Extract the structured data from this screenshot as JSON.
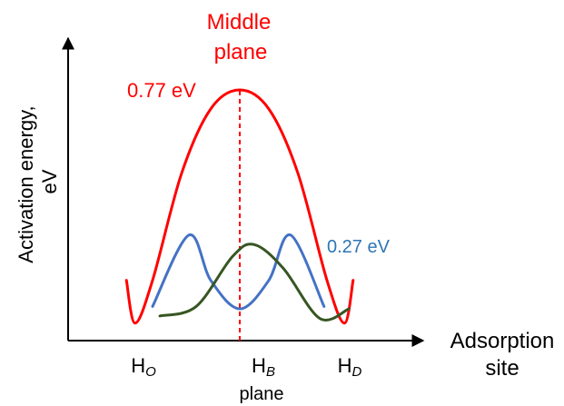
{
  "chart_data": {
    "type": "line",
    "ylabel_lines": [
      "Activation energy,",
      "eV"
    ],
    "xlabel_lines": [
      "Adsorption",
      "site"
    ],
    "x_ticks": [
      {
        "main": "H",
        "sub": "O"
      },
      {
        "main": "H",
        "sub": "B"
      },
      {
        "main": "H",
        "sub": "D"
      }
    ],
    "x_tick_note": "plane",
    "annotations": {
      "middle_plane_lines": [
        "Middle",
        "plane"
      ],
      "red_barrier": "0.77 eV",
      "blue_barrier": "0.27 eV"
    },
    "series": [
      {
        "color": "#ff0000",
        "points": [
          [
            -0.78,
            0.2
          ],
          [
            -0.72,
            0.02
          ],
          [
            -0.6,
            0.2
          ],
          [
            -0.4,
            0.65
          ],
          [
            -0.2,
            0.92
          ],
          [
            0,
            1.0
          ],
          [
            0.2,
            0.92
          ],
          [
            0.4,
            0.65
          ],
          [
            0.6,
            0.2
          ],
          [
            0.72,
            0.02
          ],
          [
            0.78,
            0.2
          ]
        ]
      },
      {
        "color": "#4472c4",
        "points": [
          [
            -0.6,
            0.09
          ],
          [
            -0.35,
            0.39
          ],
          [
            -0.2,
            0.2
          ],
          [
            0,
            0.08
          ],
          [
            0.2,
            0.2
          ],
          [
            0.35,
            0.39
          ],
          [
            0.58,
            0.09
          ]
        ]
      },
      {
        "color": "#375623",
        "points": [
          [
            -0.55,
            0.05
          ],
          [
            -0.3,
            0.09
          ],
          [
            -0.05,
            0.3
          ],
          [
            0.1,
            0.35
          ],
          [
            0.3,
            0.25
          ],
          [
            0.55,
            0.04
          ],
          [
            0.75,
            0.08
          ]
        ]
      }
    ],
    "guide_line": {
      "x": 0,
      "style": "dashed",
      "color": "#ff0000"
    },
    "colors": {
      "red": "#ff0000",
      "blue": "#2e75b6",
      "green": "#375623",
      "axis": "#000000"
    }
  }
}
